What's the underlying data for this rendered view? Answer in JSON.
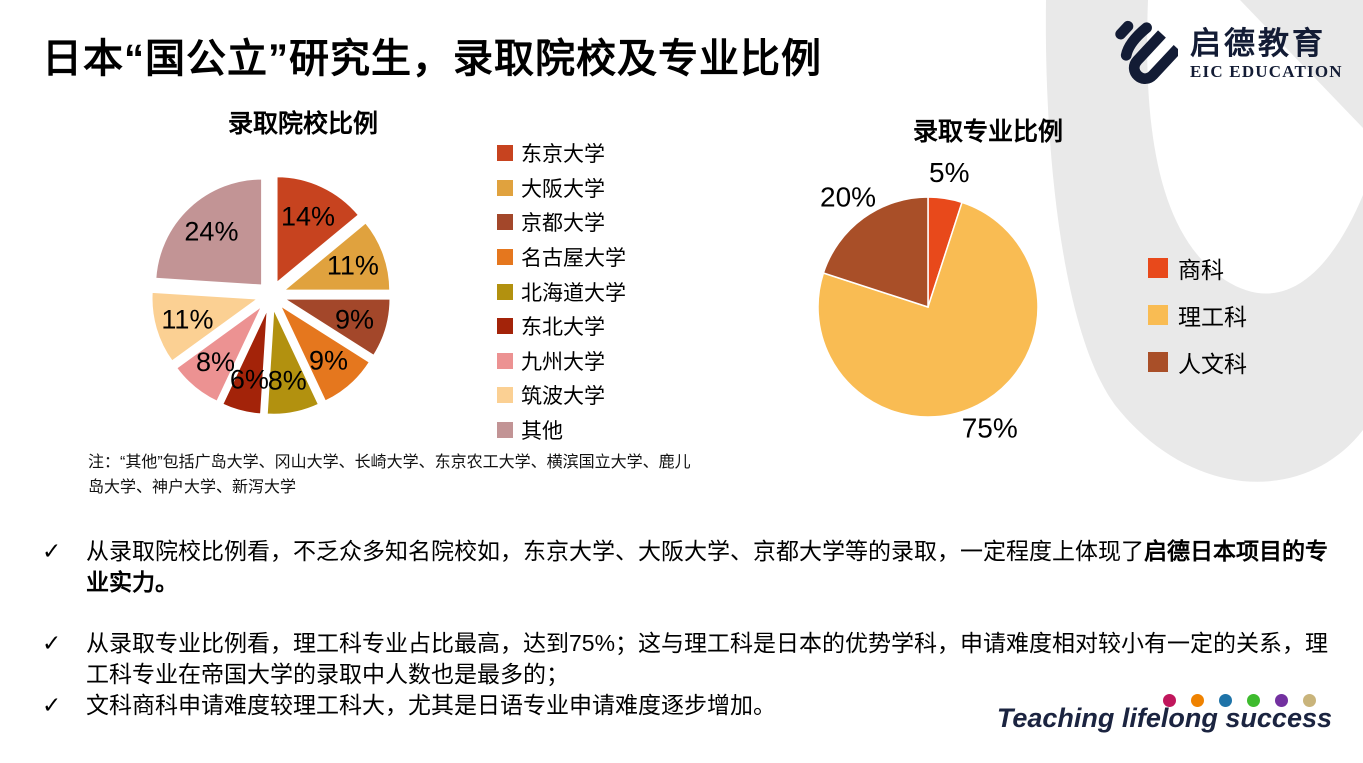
{
  "slide": {
    "title": "日本“国公立”研究生，录取院校及专业比例"
  },
  "logo": {
    "cn": "启德教育",
    "en": "EIC EDUCATION",
    "color": "#131c35"
  },
  "chart_data": [
    {
      "type": "pie",
      "title": "录取院校比例",
      "labels": [
        "东京大学",
        "大阪大学",
        "京都大学",
        "名古屋大学",
        "北海道大学",
        "东北大学",
        "九州大学",
        "筑波大学",
        "其他"
      ],
      "values": [
        14,
        11,
        9,
        9,
        8,
        6,
        8,
        11,
        24
      ],
      "unit": "%",
      "colors": [
        "#C7431F",
        "#E0A23E",
        "#A3472A",
        "#E5771E",
        "#B2910F",
        "#A32309",
        "#EC9292",
        "#FBD093",
        "#C29495"
      ],
      "exploded": true,
      "label_position": "inside",
      "legend_position": "right",
      "start_angle": "top-clockwise"
    },
    {
      "type": "pie",
      "title": "录取专业比例",
      "labels": [
        "商科",
        "理工科",
        "人文科"
      ],
      "values": [
        5,
        75,
        20
      ],
      "unit": "%",
      "colors": [
        "#E8491B",
        "#F9BC53",
        "#A94F28"
      ],
      "exploded": false,
      "label_position": "outside",
      "legend_position": "right",
      "start_angle": "top-clockwise"
    }
  ],
  "note": {
    "text": "注：“其他”包括广岛大学、冈山大学、长崎大学、东京农工大学、横滨国立大学、鹿儿岛大学、神户大学、新泻大学"
  },
  "bullets": [
    {
      "marker": "✓",
      "segments": [
        {
          "text": "从录取院校比例看，不乏众多知名院校如，东京大学、大阪大学、京都大学等的录取，一定程度上体现了",
          "bold": false
        },
        {
          "text": "启德日本项目的专业实力。",
          "bold": true
        }
      ]
    },
    {
      "marker": "✓",
      "segments": [
        {
          "text": "从录取专业比例看，理工科专业占比最高，达到75%；这与理工科是日本的优势学科，申请难度相对较小有一定的关系，理工科专业在帝国大学的录取中人数也是最多的；",
          "bold": false
        }
      ]
    },
    {
      "marker": "✓",
      "segments": [
        {
          "text": "文科商科申请难度较理工科大，尤其是日语专业申请难度逐步增加。",
          "bold": false
        }
      ]
    }
  ],
  "footer": {
    "slogan": "Teaching lifelong success",
    "dot_colors": [
      "#C0165C",
      "#EF8200",
      "#1E73A8",
      "#3EBB2E",
      "#7331A0",
      "#C9B47B"
    ],
    "slogan_color": "#1b2440"
  },
  "watermark_color": "#e9e9e9"
}
